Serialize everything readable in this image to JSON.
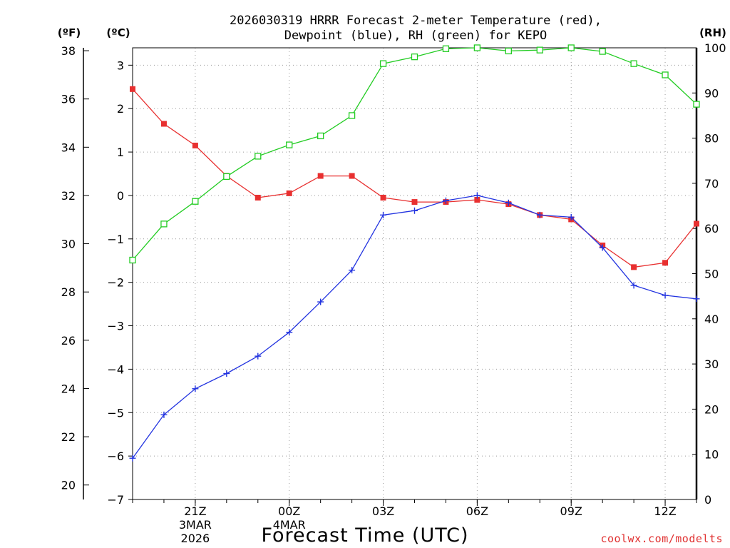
{
  "chart_data": {
    "type": "line",
    "title_lines": [
      "2026030319 HRRR Forecast 2-meter Temperature (red),",
      "Dewpoint (blue), RH (green) for KEPO"
    ],
    "xlabel": "Forecast Time (UTC)",
    "credit": "coolwx.com/modelts",
    "x_hours": [
      0,
      1,
      2,
      3,
      4,
      5,
      6,
      7,
      8,
      9,
      10,
      11,
      12,
      13,
      14,
      15,
      16,
      17,
      18
    ],
    "xticks": [
      {
        "hour": 2,
        "lines": [
          "21Z",
          "3MAR",
          "2026"
        ]
      },
      {
        "hour": 5,
        "lines": [
          "00Z",
          "4MAR"
        ]
      },
      {
        "hour": 8,
        "lines": [
          "03Z"
        ]
      },
      {
        "hour": 11,
        "lines": [
          "06Z"
        ]
      },
      {
        "hour": 14,
        "lines": [
          "09Z"
        ]
      },
      {
        "hour": 17,
        "lines": [
          "12Z"
        ]
      }
    ],
    "xlim": [
      0,
      18
    ],
    "axes": {
      "fahrenheit": {
        "unit": "(ºF)",
        "ticks": [
          20,
          22,
          24,
          26,
          28,
          30,
          32,
          34,
          36,
          38
        ]
      },
      "celsius": {
        "unit": "(ºC)",
        "ylim": [
          -7,
          3.4
        ],
        "ticks": [
          -7,
          -6,
          -5,
          -4,
          -3,
          -2,
          -1,
          0,
          1,
          2,
          3
        ]
      },
      "rh": {
        "unit": "(RH)",
        "ylim": [
          0,
          100
        ],
        "ticks": [
          0,
          10,
          20,
          30,
          40,
          50,
          60,
          70,
          80,
          90,
          100
        ]
      }
    },
    "grid": true,
    "series": [
      {
        "axis": "celsius",
        "color": "#e83030",
        "marker": "filled-square",
        "values": [
          2.45,
          1.65,
          1.15,
          0.45,
          -0.05,
          0.05,
          0.45,
          0.45,
          -0.05,
          -0.15,
          -0.15,
          -0.1,
          -0.2,
          -0.45,
          -0.55,
          -1.15,
          -1.65,
          -1.55,
          -0.65
        ]
      },
      {
        "axis": "celsius",
        "color": "#2233e0",
        "marker": "plus",
        "values": [
          -6.05,
          -5.05,
          -4.45,
          -4.1,
          -3.7,
          -3.15,
          -2.45,
          -1.72,
          -0.45,
          -0.35,
          -0.12,
          0.0,
          -0.17,
          -0.45,
          -0.5,
          -1.2,
          -2.07,
          -2.3,
          -2.38
        ]
      },
      {
        "axis": "rh",
        "color": "#22cc22",
        "marker": "open-square",
        "values": [
          53,
          61,
          66,
          71.5,
          76,
          78.5,
          80.5,
          85,
          96.5,
          98,
          99.8,
          100,
          99.3,
          99.5,
          100,
          99.2,
          96.5,
          94,
          87.5
        ]
      }
    ]
  }
}
